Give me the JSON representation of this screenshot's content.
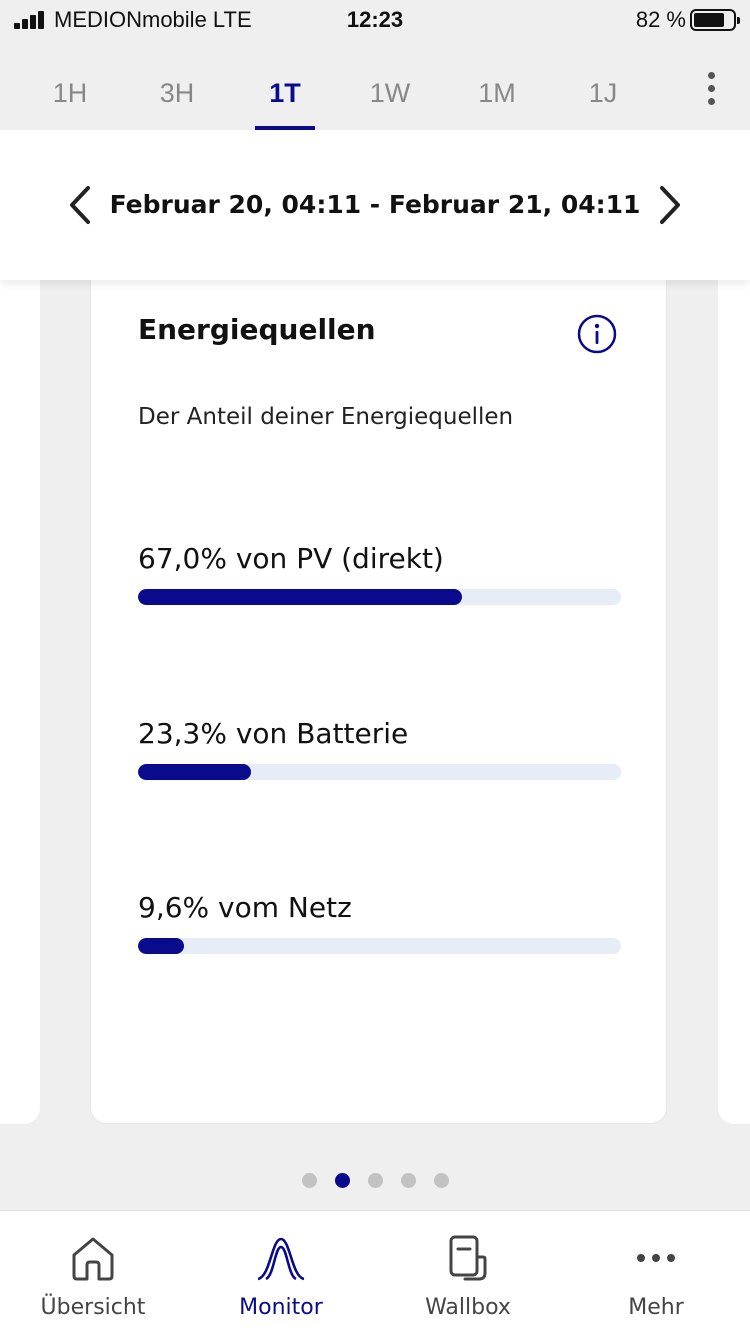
{
  "status_bar": {
    "carrier": "MEDIONmobile  LTE",
    "time": "12:23",
    "battery": "82 %",
    "battery_level": 0.82
  },
  "range_tabs": [
    {
      "label": "1H",
      "active": false
    },
    {
      "label": "3H",
      "active": false
    },
    {
      "label": "1T",
      "active": true
    },
    {
      "label": "1W",
      "active": false
    },
    {
      "label": "1M",
      "active": false
    },
    {
      "label": "1J",
      "active": false
    }
  ],
  "date_header": {
    "range": "Februar 20, 04:11 - Februar 21, 04:11",
    "prev_icon": "chevron-left-icon",
    "next_icon": "chevron-right-icon"
  },
  "card": {
    "title": "Energiequellen",
    "subtitle": "Der Anteil deiner Energiequellen",
    "info_icon": "info-icon",
    "sources": [
      {
        "label": "67,0% von PV (direkt)",
        "fraction": 0.67
      },
      {
        "label": "23,3% von Batterie",
        "fraction": 0.233
      },
      {
        "label": "9,6% vom Netz",
        "fraction": 0.096
      }
    ]
  },
  "pager": {
    "count": 5,
    "active_index": 1
  },
  "bottom_nav": [
    {
      "label": "Übersicht",
      "icon": "home-icon",
      "active": false
    },
    {
      "label": "Monitor",
      "icon": "monitor-curve-icon",
      "active": true
    },
    {
      "label": "Wallbox",
      "icon": "wallbox-icon",
      "active": false
    },
    {
      "label": "Mehr",
      "icon": "more-dots-icon",
      "active": false
    }
  ],
  "colors": {
    "accent": "#0a0a8c",
    "track": "#e6edf6",
    "background": "#efefef"
  }
}
